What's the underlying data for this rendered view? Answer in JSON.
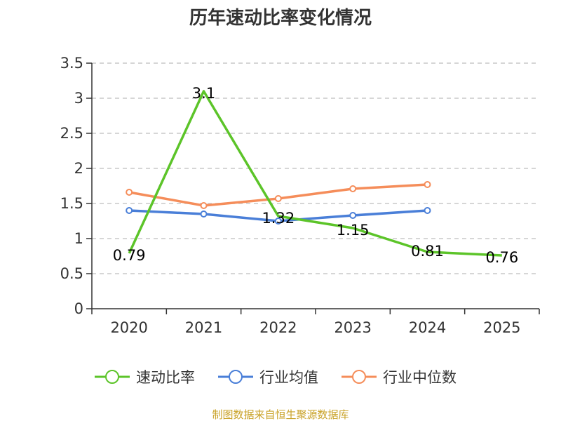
{
  "chart_data": {
    "type": "line",
    "title": "历年速动比率变化情况",
    "categories": [
      "2020",
      "2021",
      "2022",
      "2023",
      "2024",
      "2025"
    ],
    "ylim": [
      0,
      3.5
    ],
    "yticks": [
      0,
      0.5,
      1,
      1.5,
      2,
      2.5,
      3,
      3.5
    ],
    "ytick_labels": [
      "0",
      "0.5",
      "1",
      "1.5",
      "2",
      "2.5",
      "3",
      "3.5"
    ],
    "grid": true,
    "legend_position": "bottom",
    "series": [
      {
        "name": "速动比率",
        "color": "#5cc429",
        "values": [
          0.79,
          3.1,
          1.32,
          1.15,
          0.81,
          0.76
        ],
        "labels": [
          "0.79",
          "3.1",
          "1.32",
          "1.15",
          "0.81",
          "0.76"
        ],
        "markers": false
      },
      {
        "name": "行业均值",
        "color": "#4a7fd8",
        "values": [
          1.4,
          1.35,
          1.25,
          1.33,
          1.4,
          null
        ],
        "markers": true
      },
      {
        "name": "行业中位数",
        "color": "#f58d5a",
        "values": [
          1.66,
          1.47,
          1.57,
          1.71,
          1.77,
          null
        ],
        "markers": true
      }
    ],
    "source": "制图数据来自恒生聚源数据库"
  }
}
